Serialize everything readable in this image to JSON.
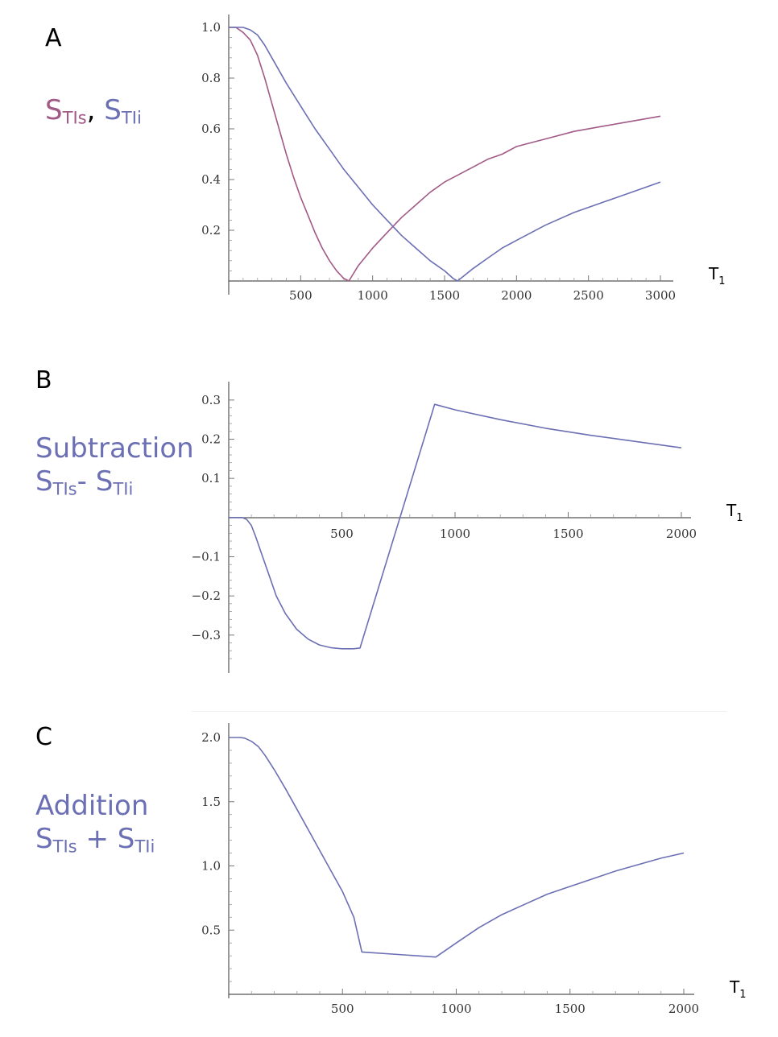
{
  "panels": [
    {
      "letter": "A"
    },
    {
      "letter": "B",
      "label_line1": "Subtraction"
    },
    {
      "letter": "C",
      "label_line1": "Addition"
    }
  ],
  "labels": {
    "s_prefix": "S",
    "sub_s": "TIs",
    "sub_i": "TIi",
    "comma": ",",
    "minus": "-",
    "plus": "+"
  },
  "colors": {
    "series_s": "#a15a86",
    "series_i": "#6b6fb3"
  },
  "chart_data": [
    {
      "type": "line",
      "panel": "A",
      "xlabel": "T1",
      "xlim": [
        0,
        3000
      ],
      "ylim": [
        0,
        1.0
      ],
      "xticks": [
        500,
        1000,
        1500,
        2000,
        2500,
        3000
      ],
      "yticks": [
        0.2,
        0.4,
        0.6,
        0.8,
        1.0
      ],
      "series": [
        {
          "color_key": "series_s",
          "points": [
            [
              0,
              1.0
            ],
            [
              50,
              1.0
            ],
            [
              100,
              0.98
            ],
            [
              150,
              0.95
            ],
            [
              200,
              0.89
            ],
            [
              250,
              0.8
            ],
            [
              300,
              0.7
            ],
            [
              350,
              0.6
            ],
            [
              400,
              0.5
            ],
            [
              450,
              0.41
            ],
            [
              500,
              0.33
            ],
            [
              550,
              0.26
            ],
            [
              600,
              0.19
            ],
            [
              650,
              0.13
            ],
            [
              700,
              0.08
            ],
            [
              750,
              0.04
            ],
            [
              800,
              0.01
            ],
            [
              835,
              0.0
            ],
            [
              900,
              0.06
            ],
            [
              1000,
              0.13
            ],
            [
              1100,
              0.19
            ],
            [
              1200,
              0.25
            ],
            [
              1300,
              0.3
            ],
            [
              1400,
              0.35
            ],
            [
              1500,
              0.39
            ],
            [
              1600,
              0.42
            ],
            [
              1700,
              0.45
            ],
            [
              1800,
              0.48
            ],
            [
              1900,
              0.5
            ],
            [
              2000,
              0.53
            ],
            [
              2200,
              0.56
            ],
            [
              2400,
              0.59
            ],
            [
              2600,
              0.61
            ],
            [
              2800,
              0.63
            ],
            [
              3000,
              0.65
            ]
          ]
        },
        {
          "color_key": "series_i",
          "points": [
            [
              0,
              1.0
            ],
            [
              100,
              1.0
            ],
            [
              150,
              0.99
            ],
            [
              200,
              0.97
            ],
            [
              250,
              0.93
            ],
            [
              300,
              0.88
            ],
            [
              400,
              0.78
            ],
            [
              500,
              0.69
            ],
            [
              600,
              0.6
            ],
            [
              700,
              0.52
            ],
            [
              800,
              0.44
            ],
            [
              900,
              0.37
            ],
            [
              1000,
              0.3
            ],
            [
              1100,
              0.24
            ],
            [
              1200,
              0.18
            ],
            [
              1300,
              0.13
            ],
            [
              1400,
              0.08
            ],
            [
              1500,
              0.04
            ],
            [
              1560,
              0.01
            ],
            [
              1590,
              0.0
            ],
            [
              1700,
              0.05
            ],
            [
              1800,
              0.09
            ],
            [
              1900,
              0.13
            ],
            [
              2000,
              0.16
            ],
            [
              2200,
              0.22
            ],
            [
              2400,
              0.27
            ],
            [
              2600,
              0.31
            ],
            [
              2800,
              0.35
            ],
            [
              3000,
              0.39
            ]
          ]
        }
      ]
    },
    {
      "type": "line",
      "panel": "B",
      "xlabel": "T1",
      "xlim": [
        0,
        2000
      ],
      "ylim": [
        -0.36,
        0.31
      ],
      "xticks": [
        500,
        1000,
        1500,
        2000
      ],
      "yticks": [
        -0.3,
        -0.2,
        -0.1,
        0.1,
        0.2,
        0.3
      ],
      "series": [
        {
          "color_key": "series_i",
          "points": [
            [
              0,
              0.0
            ],
            [
              60,
              0.0
            ],
            [
              80,
              -0.005
            ],
            [
              100,
              -0.02
            ],
            [
              120,
              -0.05
            ],
            [
              150,
              -0.1
            ],
            [
              180,
              -0.15
            ],
            [
              210,
              -0.2
            ],
            [
              250,
              -0.245
            ],
            [
              300,
              -0.285
            ],
            [
              350,
              -0.31
            ],
            [
              400,
              -0.325
            ],
            [
              450,
              -0.332
            ],
            [
              500,
              -0.335
            ],
            [
              550,
              -0.335
            ],
            [
              580,
              -0.333
            ],
            [
              910,
              0.289
            ],
            [
              1000,
              0.275
            ],
            [
              1200,
              0.25
            ],
            [
              1400,
              0.228
            ],
            [
              1600,
              0.21
            ],
            [
              1800,
              0.194
            ],
            [
              2000,
              0.178
            ]
          ]
        }
      ]
    },
    {
      "type": "line",
      "panel": "C",
      "xlabel": "T1",
      "xlim": [
        0,
        2000
      ],
      "ylim": [
        0,
        2.0
      ],
      "xticks": [
        500,
        1000,
        1500,
        2000
      ],
      "yticks": [
        0.5,
        1.0,
        1.5,
        2.0
      ],
      "series": [
        {
          "color_key": "series_i",
          "points": [
            [
              0,
              2.0
            ],
            [
              50,
              2.0
            ],
            [
              70,
              1.995
            ],
            [
              100,
              1.97
            ],
            [
              130,
              1.93
            ],
            [
              160,
              1.86
            ],
            [
              200,
              1.75
            ],
            [
              250,
              1.6
            ],
            [
              300,
              1.44
            ],
            [
              350,
              1.28
            ],
            [
              400,
              1.12
            ],
            [
              450,
              0.96
            ],
            [
              500,
              0.8
            ],
            [
              550,
              0.6
            ],
            [
              585,
              0.33
            ],
            [
              910,
              0.29
            ],
            [
              1000,
              0.4
            ],
            [
              1100,
              0.52
            ],
            [
              1200,
              0.62
            ],
            [
              1300,
              0.7
            ],
            [
              1400,
              0.78
            ],
            [
              1500,
              0.84
            ],
            [
              1600,
              0.9
            ],
            [
              1700,
              0.96
            ],
            [
              1800,
              1.01
            ],
            [
              1900,
              1.06
            ],
            [
              2000,
              1.1
            ]
          ]
        }
      ]
    }
  ]
}
